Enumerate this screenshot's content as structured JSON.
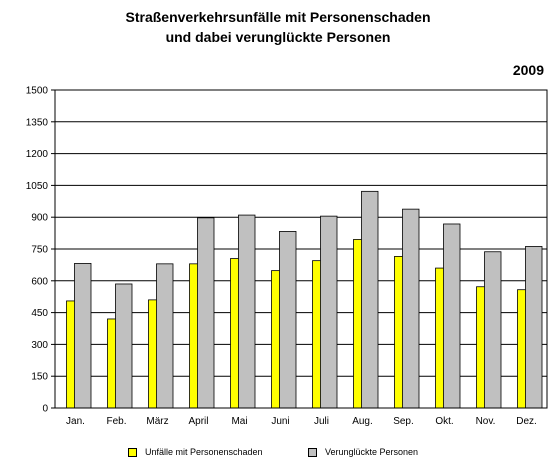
{
  "chart_data": {
    "type": "bar",
    "title": "Straßenverkehrsunfälle mit Personenschaden",
    "subtitle": "und dabei verunglückte Personen",
    "year": "2009",
    "categories": [
      "Jan.",
      "Feb.",
      "März",
      "April",
      "Mai",
      "Juni",
      "Juli",
      "Aug.",
      "Sep.",
      "Okt.",
      "Nov.",
      "Dez."
    ],
    "series": [
      {
        "name": "Unfälle mit Personenschaden",
        "color": "#ffff00",
        "values": [
          505,
          420,
          510,
          680,
          705,
          648,
          695,
          795,
          715,
          660,
          572,
          558
        ]
      },
      {
        "name": "Verunglückte Personen",
        "color": "#c0c0c0",
        "values": [
          682,
          585,
          680,
          897,
          910,
          833,
          905,
          1022,
          938,
          868,
          737,
          762
        ]
      }
    ],
    "y_ticks": [
      "0",
      "150",
      "300",
      "450",
      "600",
      "750",
      "900",
      "1050",
      "1200",
      "1350",
      "1500"
    ],
    "ylim": [
      0,
      1500
    ],
    "grid": true,
    "legend_position": "bottom"
  }
}
